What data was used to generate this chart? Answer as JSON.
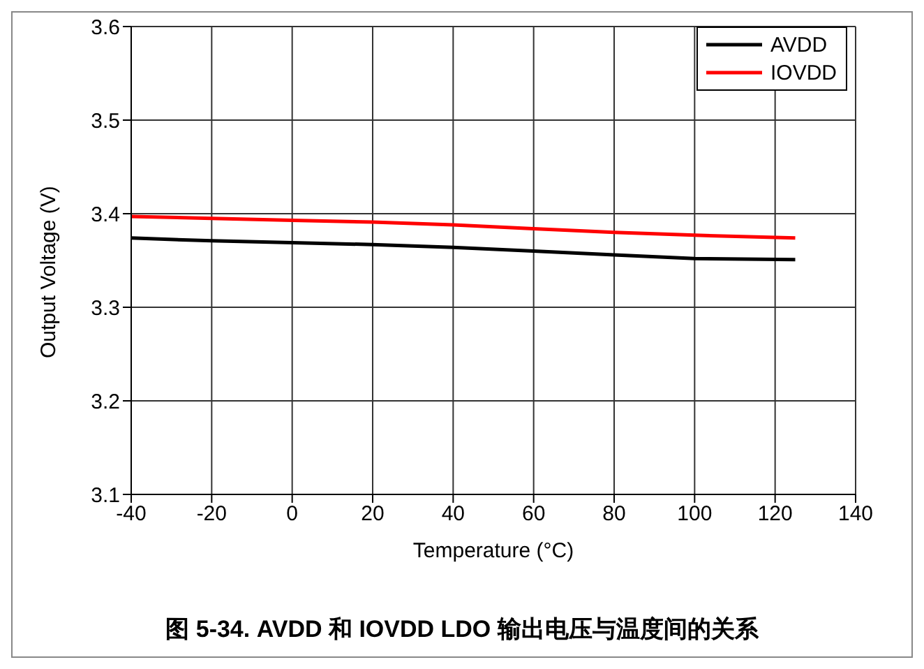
{
  "chart_data": {
    "type": "line",
    "xlabel": "Temperature (°C)",
    "ylabel": "Output Voltage (V)",
    "annotations": [
      "图 5-34. AVDD 和 IOVDD LDO 输出电压与温度间的关系"
    ],
    "x": [
      -40,
      -20,
      0,
      20,
      40,
      60,
      80,
      100,
      125
    ],
    "series": [
      {
        "name": "AVDD",
        "color": "#000000",
        "values": [
          3.374,
          3.371,
          3.369,
          3.367,
          3.364,
          3.36,
          3.356,
          3.352,
          3.351
        ]
      },
      {
        "name": "IOVDD",
        "color": "#ff0000",
        "values": [
          3.397,
          3.395,
          3.393,
          3.391,
          3.388,
          3.384,
          3.38,
          3.377,
          3.374
        ]
      }
    ],
    "xlim": [
      -40,
      140
    ],
    "xticks": [
      -40,
      -20,
      0,
      20,
      40,
      60,
      80,
      100,
      120,
      140
    ],
    "ylim": [
      3.1,
      3.6
    ],
    "yticks": [
      3.1,
      3.2,
      3.3,
      3.4,
      3.5,
      3.6
    ],
    "grid": true,
    "legend": "top right",
    "marker": "none",
    "line_style": "solid"
  }
}
